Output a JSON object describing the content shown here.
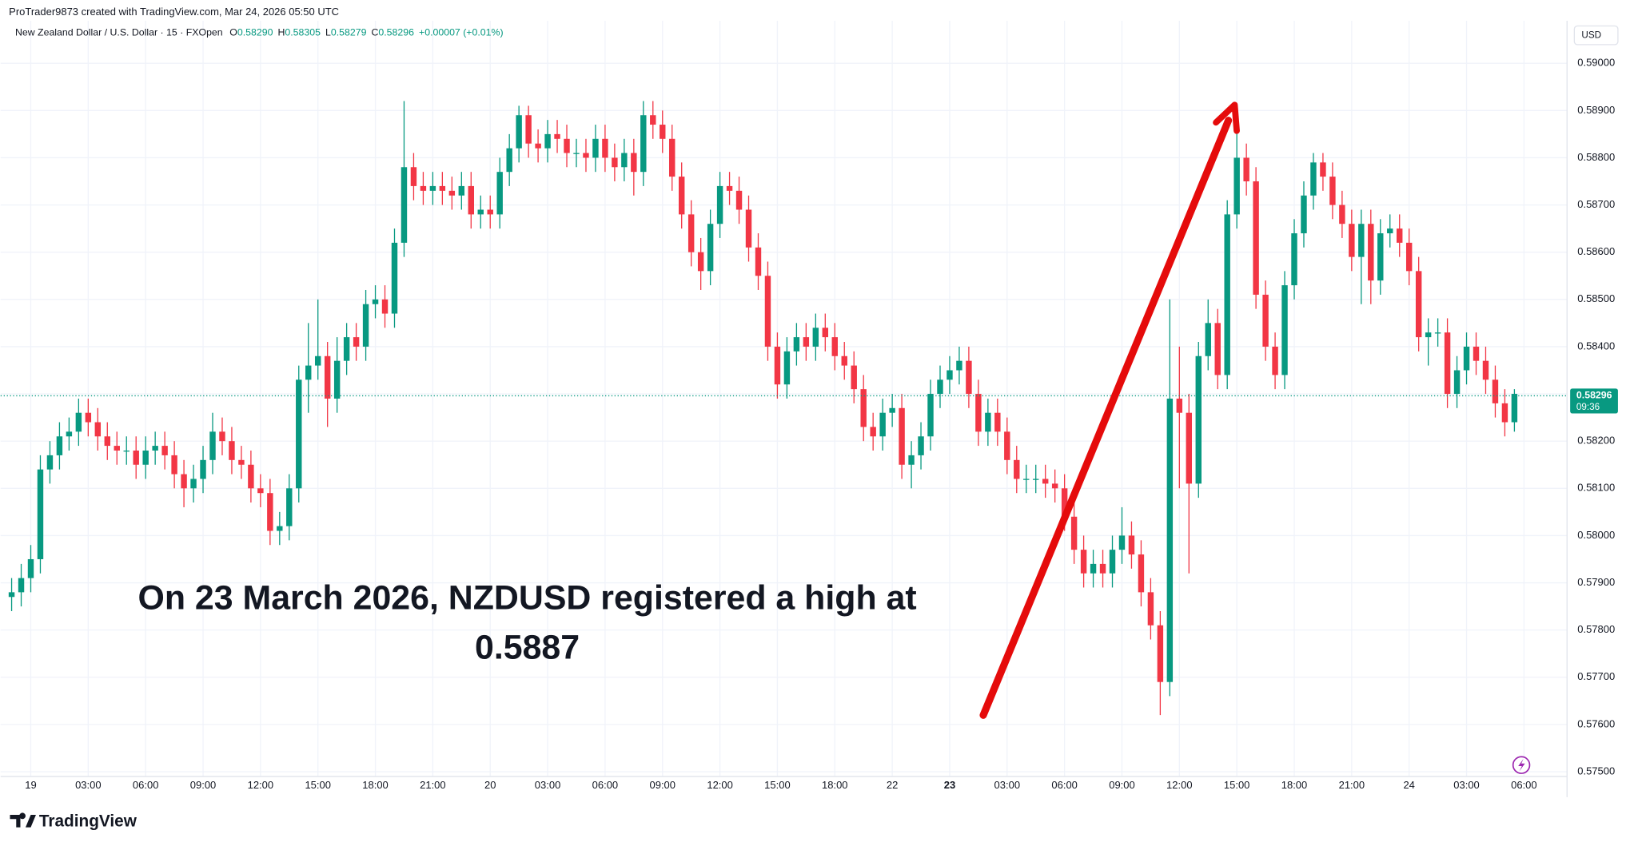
{
  "header": {
    "credit": "ProTrader9873 created with TradingView.com, Mar 24, 2026 05:50 UTC",
    "symbol": "New Zealand Dollar / U.S. Dollar · 15 · FXOpen",
    "ohlc": [
      {
        "label": "O",
        "value": "0.58290"
      },
      {
        "label": "H",
        "value": "0.58305"
      },
      {
        "label": "L",
        "value": "0.58279"
      },
      {
        "label": "C",
        "value": "0.58296"
      }
    ],
    "change": "+0.00007 (+0.01%)"
  },
  "currency": "USD",
  "branding": "TradingView",
  "chart_data": {
    "type": "candlestick",
    "open": [
      0.5787,
      0.5788,
      0.5791,
      0.5795,
      0.5814,
      0.5817,
      0.5821,
      0.5822,
      0.5826,
      0.5824,
      0.5821,
      0.5819,
      0.5818,
      0.5818,
      0.5815,
      0.5818,
      0.5819,
      0.5817,
      0.5813,
      0.581,
      0.5812,
      0.5816,
      0.5822,
      0.582,
      0.5816,
      0.5815,
      0.581,
      0.5809,
      0.5801,
      0.5802,
      0.581,
      0.5833,
      0.5836,
      0.5838,
      0.5829,
      0.5837,
      0.5842,
      0.584,
      0.5849,
      0.585,
      0.5847,
      0.5862,
      0.5878,
      0.5874,
      0.5873,
      0.5874,
      0.5873,
      0.5872,
      0.5874,
      0.5868,
      0.5869,
      0.5868,
      0.5877,
      0.5882,
      0.5889,
      0.5883,
      0.5882,
      0.5885,
      0.5884,
      0.5881,
      0.5881,
      0.588,
      0.5884,
      0.588,
      0.5878,
      0.5881,
      0.5877,
      0.5889,
      0.5887,
      0.5884,
      0.5876,
      0.5868,
      0.586,
      0.5856,
      0.5866,
      0.5874,
      0.5873,
      0.5869,
      0.5861,
      0.5855,
      0.584,
      0.5832,
      0.5839,
      0.5842,
      0.584,
      0.5844,
      0.5842,
      0.5838,
      0.5836,
      0.5831,
      0.5823,
      0.5821,
      0.5826,
      0.5827,
      0.5815,
      0.5817,
      0.5821,
      0.583,
      0.5833,
      0.5835,
      0.5837,
      0.583,
      0.5822,
      0.5826,
      0.5822,
      0.5816,
      0.5812,
      0.5812,
      0.5812,
      0.5811,
      0.581,
      0.5804,
      0.5797,
      0.5792,
      0.5794,
      0.5792,
      0.5797,
      0.58,
      0.5796,
      0.5788,
      0.5781,
      0.5769,
      0.5829,
      0.5826,
      0.5811,
      0.5838,
      0.5845,
      0.5834,
      0.5868,
      0.588,
      0.5875,
      0.5851,
      0.584,
      0.5834,
      0.5853,
      0.5864,
      0.5872,
      0.5879,
      0.5876,
      0.587,
      0.5866,
      0.5859,
      0.5866,
      0.5854,
      0.5864,
      0.5865,
      0.5862,
      0.5856,
      0.5842,
      0.5843,
      0.5843,
      0.583,
      0.5835,
      0.584,
      0.5837,
      0.5833,
      0.5828,
      0.5824
    ],
    "high": [
      0.5791,
      0.5794,
      0.5798,
      0.5817,
      0.582,
      0.5824,
      0.5825,
      0.5829,
      0.5829,
      0.5827,
      0.5824,
      0.5822,
      0.5821,
      0.5821,
      0.5821,
      0.5822,
      0.5822,
      0.582,
      0.5816,
      0.5815,
      0.5819,
      0.5826,
      0.5825,
      0.5823,
      0.5819,
      0.5818,
      0.5813,
      0.5812,
      0.5805,
      0.5813,
      0.5836,
      0.5845,
      0.585,
      0.5841,
      0.5842,
      0.5845,
      0.5845,
      0.5852,
      0.5853,
      0.5853,
      0.5865,
      0.5892,
      0.5881,
      0.5877,
      0.5877,
      0.5877,
      0.5876,
      0.5877,
      0.5877,
      0.5872,
      0.5872,
      0.588,
      0.5885,
      0.5891,
      0.5891,
      0.5886,
      0.5888,
      0.5888,
      0.5887,
      0.5884,
      0.5884,
      0.5887,
      0.5887,
      0.5883,
      0.5884,
      0.5884,
      0.5892,
      0.5892,
      0.589,
      0.5887,
      0.5879,
      0.5871,
      0.5863,
      0.5869,
      0.5877,
      0.5877,
      0.5876,
      0.5872,
      0.5864,
      0.5858,
      0.5843,
      0.5842,
      0.5845,
      0.5845,
      0.5847,
      0.5847,
      0.5845,
      0.5841,
      0.5839,
      0.5834,
      0.5826,
      0.5829,
      0.583,
      0.583,
      0.582,
      0.5824,
      0.5833,
      0.5836,
      0.5838,
      0.584,
      0.584,
      0.5833,
      0.5829,
      0.5829,
      0.5825,
      0.5819,
      0.5815,
      0.5815,
      0.5815,
      0.5814,
      0.5813,
      0.5807,
      0.58,
      0.5797,
      0.5797,
      0.58,
      0.5806,
      0.5803,
      0.5799,
      0.5791,
      0.5784,
      0.585,
      0.584,
      0.583,
      0.5841,
      0.585,
      0.5848,
      0.5871,
      0.5887,
      0.5883,
      0.5878,
      0.5854,
      0.5843,
      0.5856,
      0.5867,
      0.5875,
      0.5881,
      0.5881,
      0.5879,
      0.5873,
      0.5869,
      0.5869,
      0.5869,
      0.5867,
      0.5868,
      0.5868,
      0.5865,
      0.5859,
      0.5846,
      0.5846,
      0.5846,
      0.5838,
      0.5843,
      0.5843,
      0.584,
      0.5836,
      0.5831,
      0.5831
    ],
    "low": [
      0.5784,
      0.5785,
      0.5788,
      0.5792,
      0.5811,
      0.5814,
      0.5818,
      0.5819,
      0.5821,
      0.5818,
      0.5816,
      0.5815,
      0.5815,
      0.5812,
      0.5812,
      0.5815,
      0.5814,
      0.581,
      0.5806,
      0.5807,
      0.5809,
      0.5813,
      0.5817,
      0.5813,
      0.5812,
      0.5807,
      0.5806,
      0.5798,
      0.5798,
      0.5799,
      0.5807,
      0.5826,
      0.5833,
      0.5823,
      0.5826,
      0.5834,
      0.5837,
      0.5837,
      0.5846,
      0.5844,
      0.5844,
      0.5859,
      0.5871,
      0.587,
      0.587,
      0.587,
      0.5869,
      0.5869,
      0.5865,
      0.5865,
      0.5865,
      0.5865,
      0.5874,
      0.5879,
      0.588,
      0.5879,
      0.5879,
      0.5881,
      0.5878,
      0.5878,
      0.5877,
      0.5877,
      0.5877,
      0.5875,
      0.5875,
      0.5872,
      0.5874,
      0.5884,
      0.5881,
      0.5873,
      0.5865,
      0.5857,
      0.5852,
      0.5853,
      0.5863,
      0.587,
      0.5866,
      0.5858,
      0.5852,
      0.5837,
      0.5829,
      0.5829,
      0.5836,
      0.5837,
      0.5837,
      0.5839,
      0.5835,
      0.5833,
      0.5828,
      0.582,
      0.5818,
      0.5818,
      0.5823,
      0.5812,
      0.581,
      0.5814,
      0.5818,
      0.5827,
      0.583,
      0.5832,
      0.5827,
      0.5819,
      0.5819,
      0.5819,
      0.5813,
      0.5809,
      0.5809,
      0.5809,
      0.5808,
      0.5807,
      0.5801,
      0.5794,
      0.5789,
      0.5789,
      0.5789,
      0.5789,
      0.5794,
      0.5793,
      0.5785,
      0.5778,
      0.5762,
      0.5766,
      0.581,
      0.5792,
      0.5808,
      0.5835,
      0.5831,
      0.5831,
      0.5865,
      0.5872,
      0.5848,
      0.5837,
      0.5831,
      0.5831,
      0.585,
      0.5861,
      0.5869,
      0.5873,
      0.5867,
      0.5863,
      0.5856,
      0.5849,
      0.5849,
      0.5851,
      0.5861,
      0.5859,
      0.5853,
      0.5839,
      0.5836,
      0.584,
      0.5827,
      0.5827,
      0.5832,
      0.5834,
      0.583,
      0.5825,
      0.5821,
      0.5822
    ],
    "close": [
      0.5788,
      0.5791,
      0.5795,
      0.5814,
      0.5817,
      0.5821,
      0.5822,
      0.5826,
      0.5824,
      0.5821,
      0.5819,
      0.5818,
      0.5818,
      0.5815,
      0.5818,
      0.5819,
      0.5817,
      0.5813,
      0.581,
      0.5812,
      0.5816,
      0.5822,
      0.582,
      0.5816,
      0.5815,
      0.581,
      0.5809,
      0.5801,
      0.5802,
      0.581,
      0.5833,
      0.5836,
      0.5838,
      0.5829,
      0.5837,
      0.5842,
      0.584,
      0.5849,
      0.585,
      0.5847,
      0.5862,
      0.5878,
      0.5874,
      0.5873,
      0.5874,
      0.5873,
      0.5872,
      0.5874,
      0.5868,
      0.5869,
      0.5868,
      0.5877,
      0.5882,
      0.5889,
      0.5883,
      0.5882,
      0.5885,
      0.5884,
      0.5881,
      0.5881,
      0.588,
      0.5884,
      0.588,
      0.5878,
      0.5881,
      0.5877,
      0.5889,
      0.5887,
      0.5884,
      0.5876,
      0.5868,
      0.586,
      0.5856,
      0.5866,
      0.5874,
      0.5873,
      0.5869,
      0.5861,
      0.5855,
      0.584,
      0.5832,
      0.5839,
      0.5842,
      0.584,
      0.5844,
      0.5842,
      0.5838,
      0.5836,
      0.5831,
      0.5823,
      0.5821,
      0.5826,
      0.5827,
      0.5815,
      0.5817,
      0.5821,
      0.583,
      0.5833,
      0.5835,
      0.5837,
      0.583,
      0.5822,
      0.5826,
      0.5822,
      0.5816,
      0.5812,
      0.5812,
      0.5812,
      0.5811,
      0.581,
      0.5804,
      0.5797,
      0.5792,
      0.5794,
      0.5792,
      0.5797,
      0.58,
      0.5796,
      0.5788,
      0.5781,
      0.5769,
      0.5829,
      0.5826,
      0.5811,
      0.5838,
      0.5845,
      0.5834,
      0.5868,
      0.588,
      0.5875,
      0.5851,
      0.584,
      0.5834,
      0.5853,
      0.5864,
      0.5872,
      0.5879,
      0.5876,
      0.587,
      0.5866,
      0.5859,
      0.5866,
      0.5854,
      0.5864,
      0.5865,
      0.5862,
      0.5856,
      0.5842,
      0.5843,
      0.5843,
      0.583,
      0.5835,
      0.584,
      0.5837,
      0.5833,
      0.5828,
      0.5824,
      0.583
    ],
    "up_color": "#089981",
    "down_color": "#f23645",
    "ylim": [
      0.5749,
      0.5909
    ],
    "yticks": [
      {
        "value": 0.575,
        "label": "0.57500"
      },
      {
        "value": 0.576,
        "label": "0.57600"
      },
      {
        "value": 0.577,
        "label": "0.57700"
      },
      {
        "value": 0.578,
        "label": "0.57800"
      },
      {
        "value": 0.579,
        "label": "0.57900"
      },
      {
        "value": 0.58,
        "label": "0.58000"
      },
      {
        "value": 0.581,
        "label": "0.58100"
      },
      {
        "value": 0.582,
        "label": "0.58200"
      },
      {
        "value": 0.583,
        "label": "0.58300"
      },
      {
        "value": 0.584,
        "label": "0.58400"
      },
      {
        "value": 0.585,
        "label": "0.58500"
      },
      {
        "value": 0.586,
        "label": "0.58600"
      },
      {
        "value": 0.587,
        "label": "0.58700"
      },
      {
        "value": 0.588,
        "label": "0.58800"
      },
      {
        "value": 0.589,
        "label": "0.58900"
      },
      {
        "value": 0.59,
        "label": "0.59000"
      }
    ],
    "xlim": [
      -1.15,
      162.5
    ],
    "xticks": [
      {
        "value": 2,
        "label": "19"
      },
      {
        "value": 8,
        "label": "03:00"
      },
      {
        "value": 14,
        "label": "06:00"
      },
      {
        "value": 20,
        "label": "09:00"
      },
      {
        "value": 26,
        "label": "12:00"
      },
      {
        "value": 32,
        "label": "15:00"
      },
      {
        "value": 38,
        "label": "18:00"
      },
      {
        "value": 44,
        "label": "21:00"
      },
      {
        "value": 50,
        "label": "20"
      },
      {
        "value": 56,
        "label": "03:00"
      },
      {
        "value": 62,
        "label": "06:00"
      },
      {
        "value": 68,
        "label": "09:00"
      },
      {
        "value": 74,
        "label": "12:00"
      },
      {
        "value": 80,
        "label": "15:00"
      },
      {
        "value": 86,
        "label": "18:00"
      },
      {
        "value": 92,
        "label": "22"
      },
      {
        "value": 98,
        "label": "23",
        "bold": true
      },
      {
        "value": 104,
        "label": "03:00"
      },
      {
        "value": 110,
        "label": "06:00"
      },
      {
        "value": 116,
        "label": "09:00"
      },
      {
        "value": 122,
        "label": "12:00"
      },
      {
        "value": 128,
        "label": "15:00"
      },
      {
        "value": 134,
        "label": "18:00"
      },
      {
        "value": 140,
        "label": "21:00"
      },
      {
        "value": 146,
        "label": "24"
      },
      {
        "value": 152,
        "label": "03:00"
      },
      {
        "value": 158,
        "label": "06:00"
      }
    ],
    "grid": true,
    "last_price": {
      "value": 0.58296,
      "label": "0.58296",
      "countdown": "09:36"
    },
    "annotation": [
      "On 23 March 2026, NZDUSD registered a high at",
      "0.5887"
    ]
  }
}
